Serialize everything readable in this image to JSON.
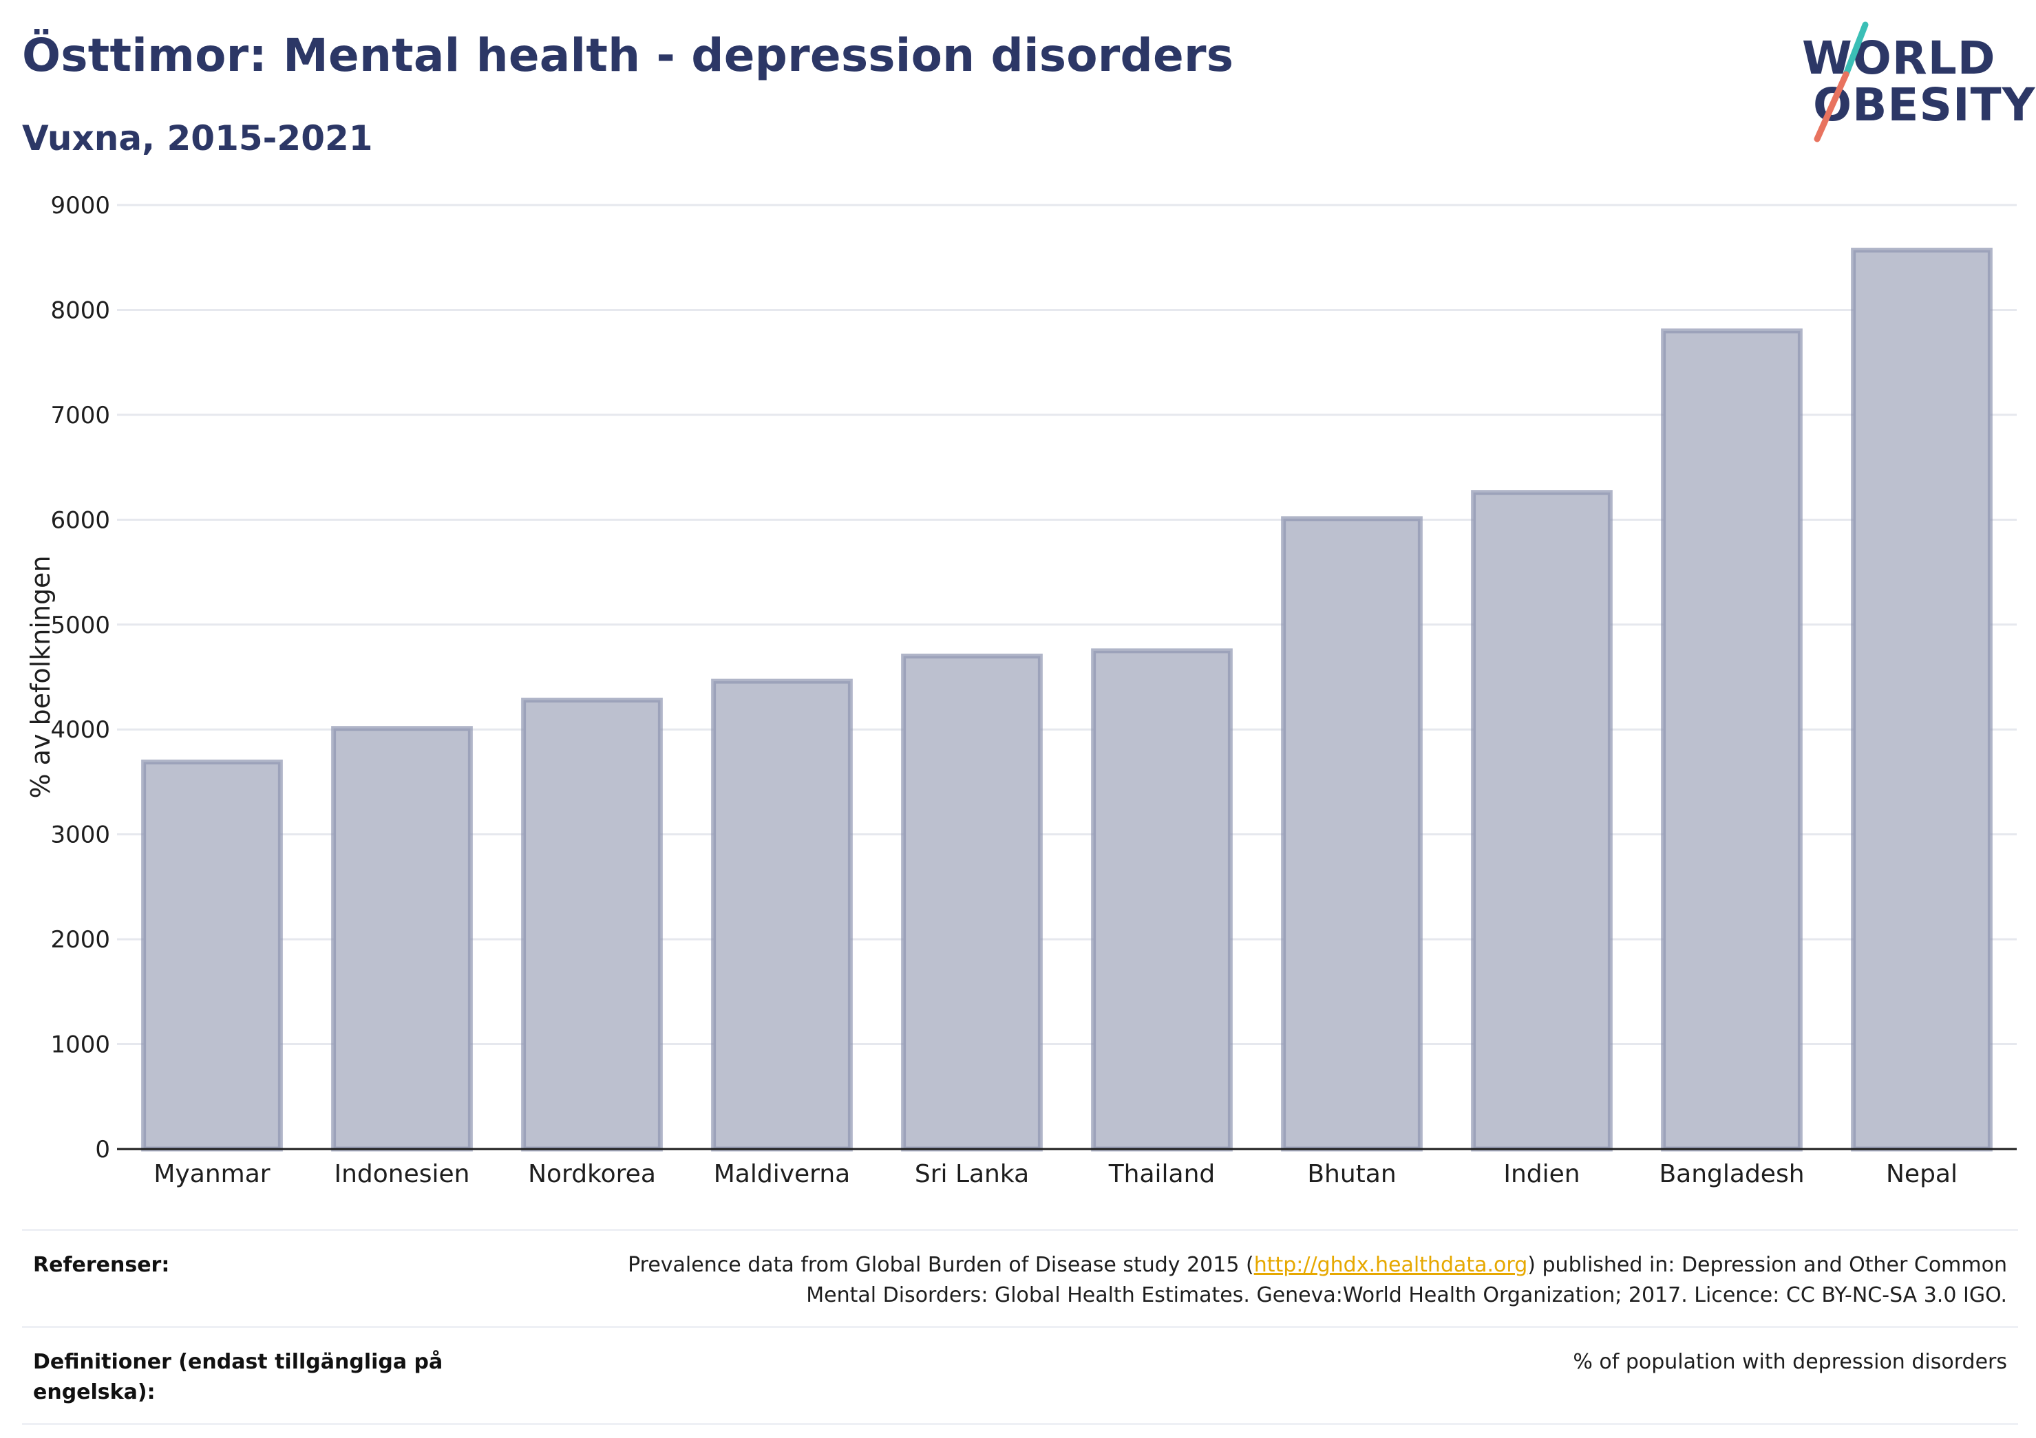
{
  "title": "Östtimor: Mental health - depression disorders",
  "subtitle": "Vuxna, 2015-2021",
  "logo": {
    "line1": "WORLD",
    "line2": "OBESITY"
  },
  "colors": {
    "bar_fill": "#bcc0cf",
    "bar_stroke": "#8e95b0",
    "title": "#2c3766",
    "logo_teal": "#3bbfb6",
    "logo_coral": "#e8735f",
    "link": "#e6a800"
  },
  "chart_data": {
    "type": "bar",
    "categories": [
      "Myanmar",
      "Indonesien",
      "Nordkorea",
      "Maldiverna",
      "Sri Lanka",
      "Thailand",
      "Bhutan",
      "Indien",
      "Bangladesh",
      "Nepal"
    ],
    "values": [
      3690,
      4010,
      4280,
      4460,
      4700,
      4750,
      6010,
      6260,
      7800,
      8570
    ],
    "ylabel": "% av befolkningen",
    "xlabel": "",
    "ylim": [
      0,
      9000
    ],
    "yticks": [
      0,
      1000,
      2000,
      3000,
      4000,
      5000,
      6000,
      7000,
      8000,
      9000
    ],
    "grid": true
  },
  "references": {
    "label": "Referenser:",
    "text_before": "Prevalence data from Global Burden of Disease study 2015 (",
    "link": "http://ghdx.healthdata.org",
    "text_after": ") published in: Depression and Other Common",
    "line2": "Mental Disorders: Global Health Estimates. Geneva:World Health Organization; 2017. Licence: CC BY-NC-SA 3.0 IGO."
  },
  "definitions": {
    "label": "Definitioner (endast tillgängliga på engelska):",
    "text": "% of population with depression disorders"
  }
}
